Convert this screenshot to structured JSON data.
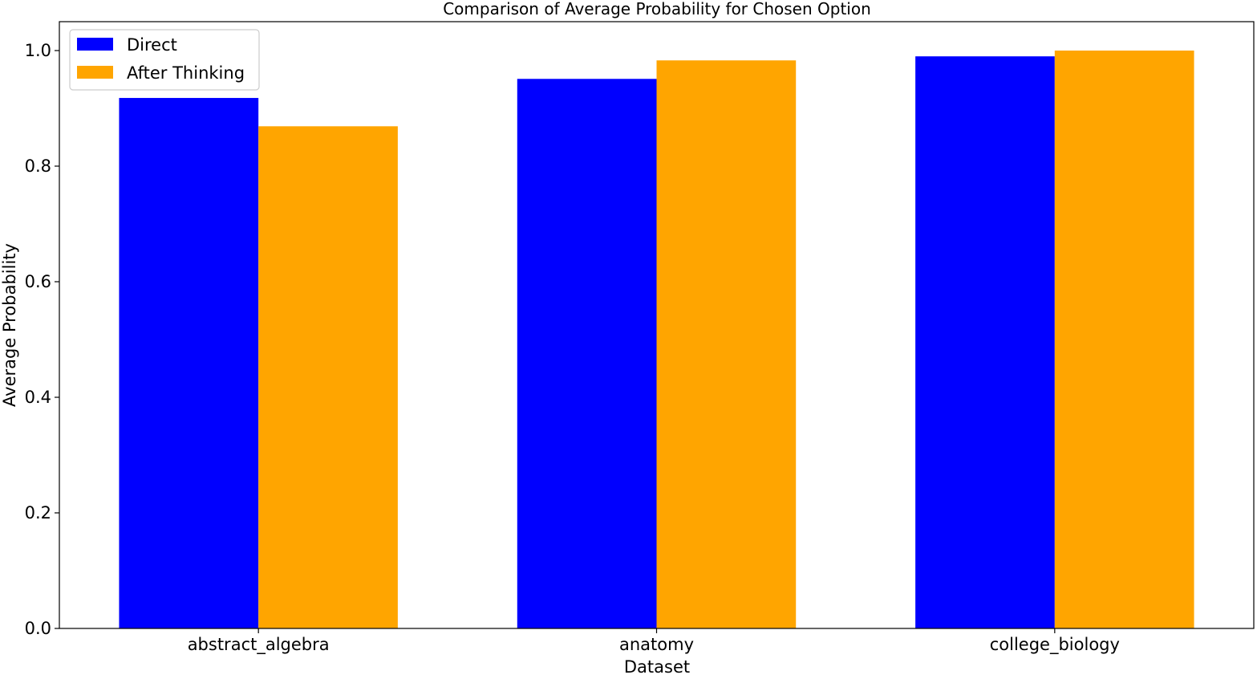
{
  "chart_data": {
    "type": "bar",
    "title": "Comparison of Average Probability for Chosen Option",
    "xlabel": "Dataset",
    "ylabel": "Average Probability",
    "categories": [
      "abstract_algebra",
      "anatomy",
      "college_biology"
    ],
    "series": [
      {
        "name": "Direct",
        "color": "#0000ff",
        "values": [
          0.918,
          0.951,
          0.99
        ]
      },
      {
        "name": "After Thinking",
        "color": "#ffa500",
        "values": [
          0.869,
          0.983,
          1.0
        ]
      }
    ],
    "ylim": [
      0,
      1.05
    ],
    "yticks": [
      0.0,
      0.2,
      0.4,
      0.6,
      0.8,
      1.0
    ],
    "ytick_labels": [
      "0.0",
      "0.2",
      "0.4",
      "0.6",
      "0.8",
      "1.0"
    ],
    "grid": false,
    "legend_position": "top-left"
  }
}
